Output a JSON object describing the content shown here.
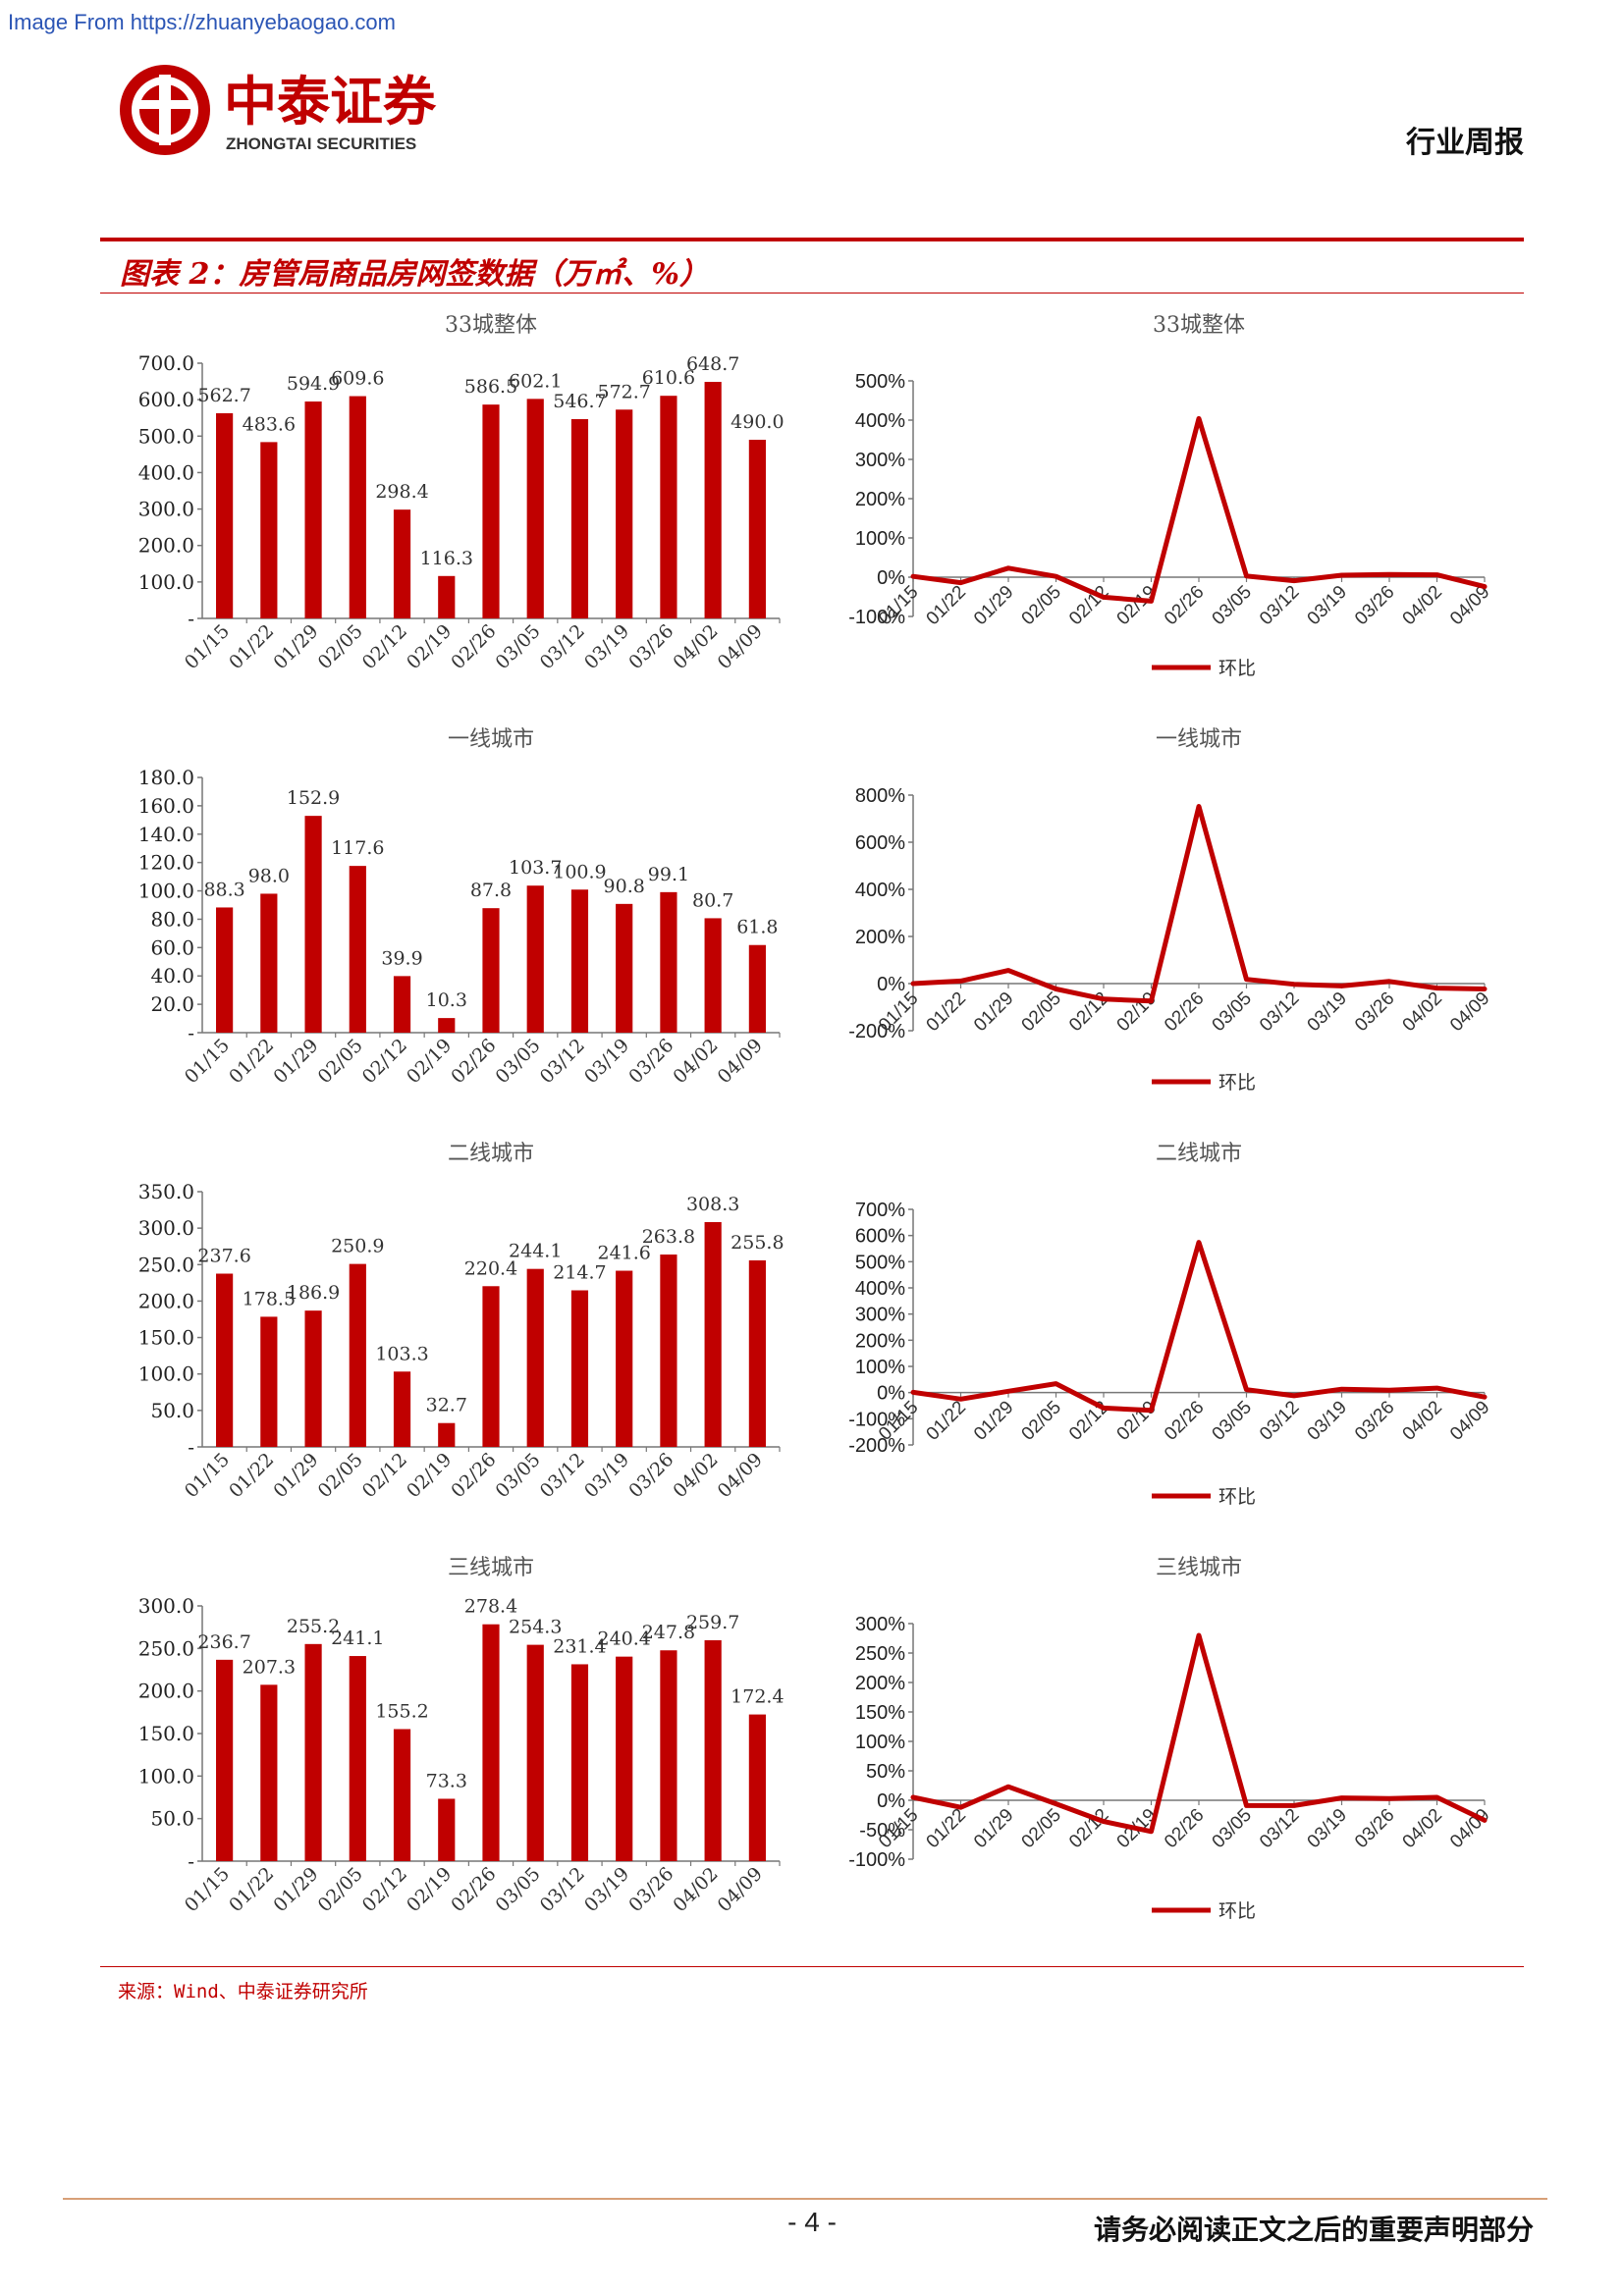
{
  "header": {
    "watermark": "Image From https://zhuanyebaogao.com",
    "brand_cn": "中泰证券",
    "brand_en": "ZHONGTAI SECURITIES",
    "report_type": "行业周报"
  },
  "figure": {
    "title": "图表 2：房管局商品房网签数据（万㎡、%）"
  },
  "colors": {
    "accent": "#c00000",
    "bar": "#c00000",
    "line": "#c00000",
    "axis": "#777777"
  },
  "chart_data": [
    {
      "type": "bar",
      "title": "33城整体",
      "categories": [
        "01/15",
        "01/22",
        "01/29",
        "02/05",
        "02/12",
        "02/19",
        "02/26",
        "03/05",
        "03/12",
        "03/19",
        "03/26",
        "04/02",
        "04/09"
      ],
      "values": [
        562.7,
        483.6,
        594.9,
        609.6,
        298.4,
        116.3,
        586.5,
        602.1,
        546.7,
        572.7,
        610.6,
        648.7,
        490.0
      ],
      "value_labels": [
        "562.7",
        "483.6",
        "594.9",
        "609.6",
        "298.4",
        "116.3",
        "586.5",
        "602.1",
        "546.7",
        "572.7",
        "610.6",
        "648.7",
        "490.0"
      ],
      "ylim": [
        0,
        700
      ],
      "yticks": [
        0,
        100,
        200,
        300,
        400,
        500,
        600,
        700
      ],
      "ytick_labels": [
        "-",
        "100.0",
        "200.0",
        "300.0",
        "400.0",
        "500.0",
        "600.0",
        "700.0"
      ]
    },
    {
      "type": "line",
      "title": "33城整体",
      "categories": [
        "01/15",
        "01/22",
        "01/29",
        "02/05",
        "02/12",
        "02/19",
        "02/26",
        "03/05",
        "03/12",
        "03/19",
        "03/26",
        "04/02",
        "04/09"
      ],
      "series": [
        {
          "name": "环比",
          "values": [
            2,
            -14,
            23,
            2,
            -51,
            -61,
            404,
            3,
            -9,
            5,
            7,
            6,
            -24
          ]
        }
      ],
      "ylim": [
        -100,
        500
      ],
      "yticks": [
        -100,
        0,
        100,
        200,
        300,
        400,
        500
      ],
      "ytick_labels": [
        "-100%",
        "0%",
        "100%",
        "200%",
        "300%",
        "400%",
        "500%"
      ],
      "legend": "bottom"
    },
    {
      "type": "bar",
      "title": "一线城市",
      "categories": [
        "01/15",
        "01/22",
        "01/29",
        "02/05",
        "02/12",
        "02/19",
        "02/26",
        "03/05",
        "03/12",
        "03/19",
        "03/26",
        "04/02",
        "04/09"
      ],
      "values": [
        88.3,
        98.0,
        152.9,
        117.6,
        39.9,
        10.3,
        87.8,
        103.7,
        100.9,
        90.8,
        99.1,
        80.7,
        61.8
      ],
      "value_labels": [
        "88.3",
        "98.0",
        "152.9",
        "117.6",
        "39.9",
        "10.3",
        "87.8",
        "103.7",
        "100.9",
        "90.8",
        "99.1",
        "80.7",
        "61.8"
      ],
      "ylim": [
        0,
        180
      ],
      "yticks": [
        0,
        20,
        40,
        60,
        80,
        100,
        120,
        140,
        160,
        180
      ],
      "ytick_labels": [
        "-",
        "20.0",
        "40.0",
        "60.0",
        "80.0",
        "100.0",
        "120.0",
        "140.0",
        "160.0",
        "180.0"
      ]
    },
    {
      "type": "line",
      "title": "一线城市",
      "categories": [
        "01/15",
        "01/22",
        "01/29",
        "02/05",
        "02/12",
        "02/19",
        "02/26",
        "03/05",
        "03/12",
        "03/19",
        "03/26",
        "04/02",
        "04/09"
      ],
      "series": [
        {
          "name": "环比",
          "values": [
            0,
            11,
            56,
            -23,
            -66,
            -74,
            752,
            18,
            -3,
            -10,
            9,
            -19,
            -23
          ]
        }
      ],
      "ylim": [
        -200,
        800
      ],
      "yticks": [
        -200,
        0,
        200,
        400,
        600,
        800
      ],
      "ytick_labels": [
        "-200%",
        "0%",
        "200%",
        "400%",
        "600%",
        "800%"
      ],
      "legend": "bottom"
    },
    {
      "type": "bar",
      "title": "二线城市",
      "categories": [
        "01/15",
        "01/22",
        "01/29",
        "02/05",
        "02/12",
        "02/19",
        "02/26",
        "03/05",
        "03/12",
        "03/19",
        "03/26",
        "04/02",
        "04/09"
      ],
      "values": [
        237.6,
        178.5,
        186.9,
        250.9,
        103.3,
        32.7,
        220.4,
        244.1,
        214.7,
        241.6,
        263.8,
        308.3,
        255.8
      ],
      "value_labels": [
        "237.6",
        "178.5",
        "186.9",
        "250.9",
        "103.3",
        "32.7",
        "220.4",
        "244.1",
        "214.7",
        "241.6",
        "263.8",
        "308.3",
        "255.8"
      ],
      "ylim": [
        0,
        350
      ],
      "yticks": [
        0,
        50,
        100,
        150,
        200,
        250,
        300,
        350
      ],
      "ytick_labels": [
        "-",
        "50.0",
        "100.0",
        "150.0",
        "200.0",
        "250.0",
        "300.0",
        "350.0"
      ]
    },
    {
      "type": "line",
      "title": "二线城市",
      "categories": [
        "01/15",
        "01/22",
        "01/29",
        "02/05",
        "02/12",
        "02/19",
        "02/26",
        "03/05",
        "03/12",
        "03/19",
        "03/26",
        "04/02",
        "04/09"
      ],
      "series": [
        {
          "name": "环比",
          "values": [
            1,
            -25,
            5,
            34,
            -59,
            -68,
            574,
            11,
            -12,
            13,
            9,
            17,
            -17
          ]
        }
      ],
      "ylim": [
        -200,
        700
      ],
      "yticks": [
        -200,
        -100,
        0,
        100,
        200,
        300,
        400,
        500,
        600,
        700
      ],
      "ytick_labels": [
        "-200%",
        "-100%",
        "0%",
        "100%",
        "200%",
        "300%",
        "400%",
        "500%",
        "600%",
        "700%"
      ],
      "legend": "bottom"
    },
    {
      "type": "bar",
      "title": "三线城市",
      "categories": [
        "01/15",
        "01/22",
        "01/29",
        "02/05",
        "02/12",
        "02/19",
        "02/26",
        "03/05",
        "03/12",
        "03/19",
        "03/26",
        "04/02",
        "04/09"
      ],
      "values": [
        236.7,
        207.3,
        255.2,
        241.1,
        155.2,
        73.3,
        278.4,
        254.3,
        231.4,
        240.4,
        247.8,
        259.7,
        172.4
      ],
      "value_labels": [
        "236.7",
        "207.3",
        "255.2",
        "241.1",
        "155.2",
        "73.3",
        "278.4",
        "254.3",
        "231.4",
        "240.4",
        "247.8",
        "259.7",
        "172.4"
      ],
      "ylim": [
        0,
        300
      ],
      "yticks": [
        0,
        50,
        100,
        150,
        200,
        250,
        300
      ],
      "ytick_labels": [
        "-",
        "50.0",
        "100.0",
        "150.0",
        "200.0",
        "250.0",
        "300.0"
      ]
    },
    {
      "type": "line",
      "title": "三线城市",
      "categories": [
        "01/15",
        "01/22",
        "01/29",
        "02/05",
        "02/12",
        "02/19",
        "02/26",
        "03/05",
        "03/12",
        "03/19",
        "03/26",
        "04/02",
        "04/09"
      ],
      "series": [
        {
          "name": "环比",
          "values": [
            5,
            -12,
            23,
            -6,
            -36,
            -53,
            280,
            -9,
            -9,
            4,
            3,
            5,
            -34
          ]
        }
      ],
      "ylim": [
        -100,
        300
      ],
      "yticks": [
        -100,
        -50,
        0,
        50,
        100,
        150,
        200,
        250,
        300
      ],
      "ytick_labels": [
        "-100%",
        "-50%",
        "0%",
        "50%",
        "100%",
        "150%",
        "200%",
        "250%",
        "300%"
      ],
      "legend": "bottom"
    }
  ],
  "source": "来源：Wind、中泰证券研究所",
  "footer": {
    "page": "- 4 -",
    "disclaimer": "请务必阅读正文之后的重要声明部分"
  }
}
